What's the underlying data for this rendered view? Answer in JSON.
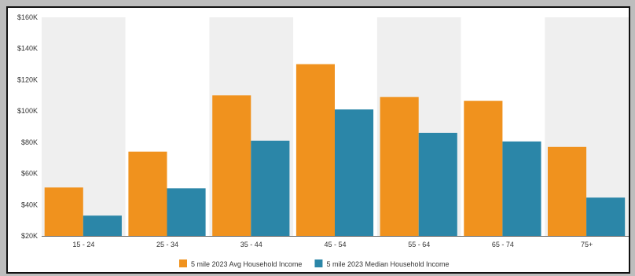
{
  "chart_data": {
    "type": "bar",
    "categories": [
      "15 - 24",
      "25 - 34",
      "35 - 44",
      "45 - 54",
      "55 - 64",
      "65 - 74",
      "75+"
    ],
    "series": [
      {
        "name": "5 mile 2023 Avg Household Income",
        "color": "#f0921e",
        "values": [
          51000,
          74000,
          110000,
          130000,
          109000,
          106500,
          77000
        ]
      },
      {
        "name": "5 mile 2023 Median Household Income",
        "color": "#2b86a8",
        "values": [
          33000,
          50500,
          81000,
          101000,
          86000,
          80500,
          44500
        ]
      }
    ],
    "ylim": [
      20000,
      160000
    ],
    "y_ticks": [
      {
        "value": 20000,
        "label": "$20K"
      },
      {
        "value": 40000,
        "label": "$40K"
      },
      {
        "value": 60000,
        "label": "$60K"
      },
      {
        "value": 80000,
        "label": "$80K"
      },
      {
        "value": 100000,
        "label": "$100K"
      },
      {
        "value": 120000,
        "label": "$120K"
      },
      {
        "value": 140000,
        "label": "$140K"
      },
      {
        "value": 160000,
        "label": "$160K"
      }
    ],
    "band_colors": [
      "#efefef",
      "#ffffff"
    ],
    "legend_position": "bottom-center",
    "grid": false
  }
}
